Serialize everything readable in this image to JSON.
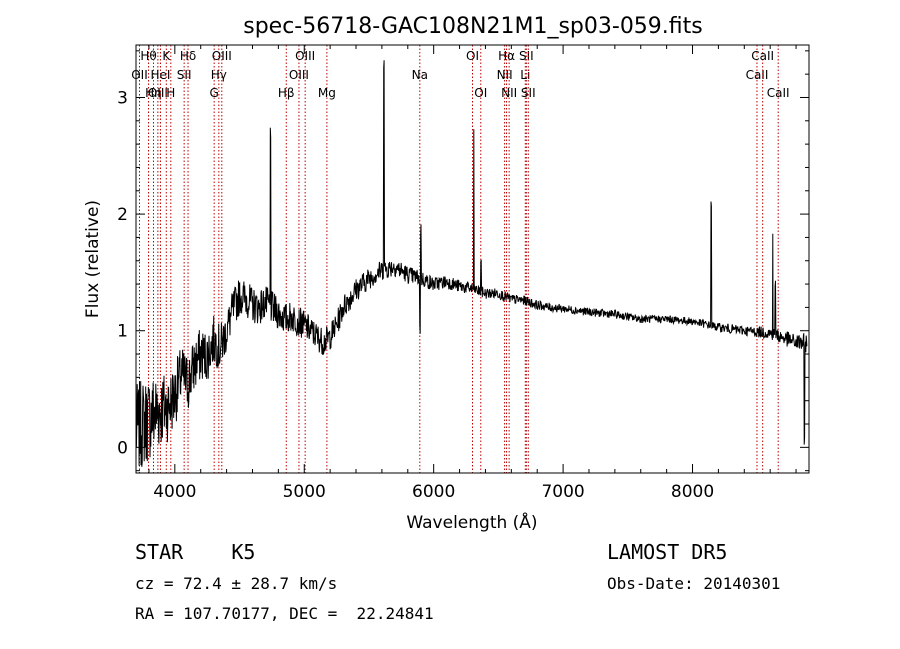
{
  "chart_data": {
    "type": "line",
    "title": "spec-56718-GAC108N21M1_sp03-059.fits",
    "xlabel": "Wavelength (Å)",
    "ylabel": "Flux (relative)",
    "xlim": [
      3700,
      8900
    ],
    "ylim": [
      -0.22,
      3.45
    ],
    "xticks": [
      4000,
      5000,
      6000,
      7000,
      8000
    ],
    "yticks": [
      0,
      1,
      2,
      3
    ],
    "line_color": "#000000",
    "marker_color": "#c00000",
    "anchors": [
      [
        3700,
        0.15
      ],
      [
        3750,
        0.2
      ],
      [
        3800,
        0.25
      ],
      [
        3850,
        0.3
      ],
      [
        3900,
        0.33
      ],
      [
        3950,
        0.35
      ],
      [
        4000,
        0.45
      ],
      [
        4050,
        0.62
      ],
      [
        4100,
        0.55
      ],
      [
        4150,
        0.7
      ],
      [
        4200,
        0.8
      ],
      [
        4250,
        0.78
      ],
      [
        4300,
        0.92
      ],
      [
        4350,
        0.85
      ],
      [
        4400,
        1.0
      ],
      [
        4450,
        1.18
      ],
      [
        4500,
        1.3
      ],
      [
        4550,
        1.28
      ],
      [
        4600,
        1.22
      ],
      [
        4650,
        1.2
      ],
      [
        4700,
        1.24
      ],
      [
        4800,
        1.15
      ],
      [
        4850,
        1.1
      ],
      [
        4900,
        1.12
      ],
      [
        5000,
        1.05
      ],
      [
        5050,
        1.0
      ],
      [
        5100,
        0.95
      ],
      [
        5150,
        0.9
      ],
      [
        5200,
        0.95
      ],
      [
        5250,
        1.05
      ],
      [
        5300,
        1.2
      ],
      [
        5400,
        1.35
      ],
      [
        5500,
        1.45
      ],
      [
        5600,
        1.52
      ],
      [
        5700,
        1.55
      ],
      [
        5800,
        1.48
      ],
      [
        5900,
        1.45
      ],
      [
        6000,
        1.4
      ],
      [
        6100,
        1.42
      ],
      [
        6200,
        1.38
      ],
      [
        6300,
        1.36
      ],
      [
        6400,
        1.32
      ],
      [
        6500,
        1.32
      ],
      [
        6600,
        1.27
      ],
      [
        6700,
        1.26
      ],
      [
        6800,
        1.22
      ],
      [
        6900,
        1.2
      ],
      [
        7000,
        1.19
      ],
      [
        7200,
        1.16
      ],
      [
        7400,
        1.14
      ],
      [
        7600,
        1.1
      ],
      [
        7800,
        1.1
      ],
      [
        8000,
        1.08
      ],
      [
        8200,
        1.03
      ],
      [
        8400,
        1.0
      ],
      [
        8600,
        0.98
      ],
      [
        8800,
        0.9
      ],
      [
        8880,
        0.9
      ]
    ],
    "noise": [
      [
        3700,
        0.22
      ],
      [
        3850,
        0.2
      ],
      [
        4000,
        0.15
      ],
      [
        4200,
        0.13
      ],
      [
        4500,
        0.09
      ],
      [
        5000,
        0.07
      ],
      [
        5300,
        0.06
      ],
      [
        5600,
        0.05
      ],
      [
        6000,
        0.035
      ],
      [
        6500,
        0.025
      ],
      [
        7000,
        0.02
      ],
      [
        8000,
        0.018
      ],
      [
        8500,
        0.025
      ],
      [
        8800,
        0.04
      ],
      [
        8900,
        0.05
      ]
    ],
    "spikes": [
      [
        4740,
        1.45
      ],
      [
        5615,
        1.8
      ],
      [
        5895,
        -0.45
      ],
      [
        5900,
        0.42
      ],
      [
        6310,
        1.35
      ],
      [
        6365,
        0.28
      ],
      [
        8145,
        1.05
      ],
      [
        8620,
        0.85
      ],
      [
        8640,
        0.45
      ],
      [
        8865,
        -0.9
      ]
    ],
    "line_markers": [
      {
        "x": 3797,
        "label": "Hθ",
        "row": 0
      },
      {
        "x": 3727,
        "label": "OII",
        "row": 1
      },
      {
        "x": 3835,
        "label": "Hη",
        "row": 2
      },
      {
        "x": 3869,
        "label": "OIII",
        "row": 2
      },
      {
        "x": 3889,
        "label": "HeI",
        "row": 1
      },
      {
        "x": 3934,
        "label": "K",
        "row": 0
      },
      {
        "x": 3969,
        "label": "H",
        "row": 2
      },
      {
        "x": 4072,
        "label": "SII",
        "row": 1
      },
      {
        "x": 4102,
        "label": "Hδ",
        "row": 0
      },
      {
        "x": 4304,
        "label": "G",
        "row": 2
      },
      {
        "x": 4340,
        "label": "Hγ",
        "row": 1
      },
      {
        "x": 4363,
        "label": "OIII",
        "row": 0
      },
      {
        "x": 4861,
        "label": "Hβ",
        "row": 2
      },
      {
        "x": 4959,
        "label": "OIII",
        "row": 1
      },
      {
        "x": 5007,
        "label": "OIII",
        "row": 0
      },
      {
        "x": 5175,
        "label": "Mg",
        "row": 2
      },
      {
        "x": 5893,
        "label": "Na",
        "row": 1
      },
      {
        "x": 6300,
        "label": "OI",
        "row": 0
      },
      {
        "x": 6364,
        "label": "OI",
        "row": 2
      },
      {
        "x": 6548,
        "label": "NII",
        "row": 1
      },
      {
        "x": 6563,
        "label": "Hα",
        "row": 0
      },
      {
        "x": 6583,
        "label": "NII",
        "row": 2
      },
      {
        "x": 6708,
        "label": "Li",
        "row": 1
      },
      {
        "x": 6716,
        "label": "SII",
        "row": 0
      },
      {
        "x": 6731,
        "label": "SII",
        "row": 2
      },
      {
        "x": 8498,
        "label": "CaII",
        "row": 1
      },
      {
        "x": 8542,
        "label": "CaII",
        "row": 0
      },
      {
        "x": 8662,
        "label": "CaII",
        "row": 2
      }
    ]
  },
  "info": {
    "class": "STAR    K5",
    "survey": "LAMOST DR5",
    "cz": "cz = 72.4 ± 28.7 km/s",
    "obs_date": "Obs-Date: 20140301",
    "radec": "RA = 107.70177, DEC =  22.24841"
  }
}
